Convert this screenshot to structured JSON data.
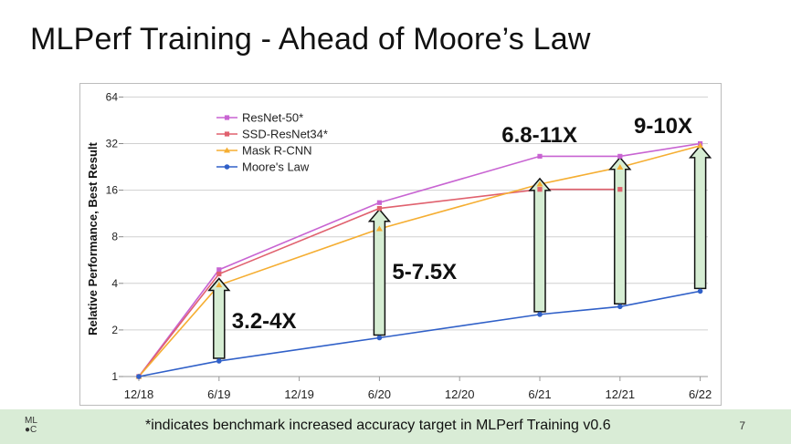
{
  "slide": {
    "title": "MLPerf Training - Ahead of Moore’s Law",
    "page_number": "7"
  },
  "footer": {
    "logo_line1": "ML",
    "logo_line2": "●C",
    "note": "*indicates benchmark increased accuracy target in MLPerf Training v0.6"
  },
  "chart_data": {
    "type": "line",
    "y_scale": "log2",
    "ylabel": "Relative Performance, Best Result",
    "xlabel": "",
    "ylim": [
      1,
      64
    ],
    "y_ticks": [
      1,
      2,
      4,
      8,
      16,
      32,
      64
    ],
    "y_tick_labels": [
      "1",
      "2",
      "4",
      "8",
      "16",
      "32",
      "64"
    ],
    "categories": [
      "12/18",
      "6/19",
      "12/19",
      "6/20",
      "12/20",
      "6/21",
      "12/21",
      "6/22"
    ],
    "series": [
      {
        "name": "ResNet-50*",
        "color": "#c864d2",
        "marker": "square",
        "points": [
          [
            0,
            1
          ],
          [
            1,
            4.9
          ],
          [
            3,
            13.3
          ],
          [
            5,
            26.5
          ],
          [
            6,
            26.5
          ],
          [
            7,
            32
          ]
        ]
      },
      {
        "name": "SSD-ResNet34*",
        "color": "#e0616e",
        "marker": "square",
        "points": [
          [
            0,
            1
          ],
          [
            1,
            4.6
          ],
          [
            3,
            12.2
          ],
          [
            5,
            16.2
          ],
          [
            6,
            16.2
          ]
        ]
      },
      {
        "name": "Mask R-CNN",
        "color": "#f5ae32",
        "marker": "triangle",
        "points": [
          [
            0,
            1
          ],
          [
            1,
            3.9
          ],
          [
            3,
            9.0
          ],
          [
            5,
            17.5
          ],
          [
            6,
            22.5
          ],
          [
            7,
            31
          ]
        ]
      },
      {
        "name": "Moore's Law",
        "color": "#3060c8",
        "marker": "circle",
        "points": [
          [
            0,
            1
          ],
          [
            1,
            1.26
          ],
          [
            3,
            1.78
          ],
          [
            5,
            2.52
          ],
          [
            6,
            2.83
          ],
          [
            7,
            3.56
          ]
        ]
      }
    ],
    "annotations": [
      {
        "text": "3.2-4X",
        "x": 1,
        "from": 1.26,
        "to": 4.3,
        "label_anchor": "right-middle"
      },
      {
        "text": "5-7.5X",
        "x": 3,
        "from": 1.78,
        "to": 12.0,
        "label_anchor": "right-middle"
      },
      {
        "text": "6.8-11X",
        "x": 5,
        "from": 2.52,
        "to": 19.0,
        "label_anchor": "top-left"
      },
      {
        "text": "",
        "x": 6,
        "from": 2.83,
        "to": 26.0,
        "label_anchor": "none"
      },
      {
        "text": "9-10X",
        "x": 7,
        "from": 3.56,
        "to": 31.0,
        "label_anchor": "top"
      }
    ],
    "legend_position": "top-left",
    "grid": "horizontal"
  }
}
